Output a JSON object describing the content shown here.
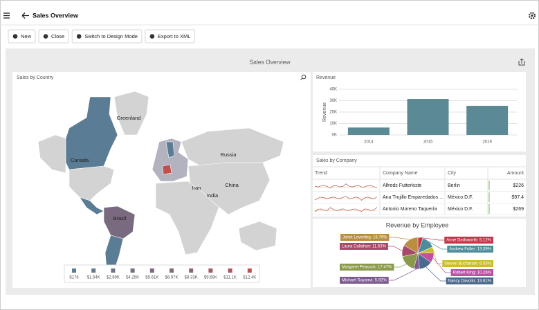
{
  "header": {
    "title": "Sales Overview"
  },
  "toolbar": {
    "buttons": [
      "New",
      "Close",
      "Switch to Design Mode",
      "Export to XML"
    ]
  },
  "dashboard": {
    "title": "Sales Overview",
    "map": {
      "title": "Sales by Country",
      "labels": [
        "Greenland",
        "Russia",
        "Canada",
        "Iran",
        "China",
        "India",
        "Brazil"
      ],
      "legend": [
        {
          "value": 176,
          "label": "$176"
        },
        {
          "value": 1540,
          "label": "$1.54K"
        },
        {
          "value": 2890,
          "label": "$2.89K"
        },
        {
          "value": 4250,
          "label": "$4.25K"
        },
        {
          "value": 5610,
          "label": "$5.61K"
        },
        {
          "value": 6970,
          "label": "$6.97K"
        },
        {
          "value": 8330,
          "label": "$8.33K"
        },
        {
          "value": 9690,
          "label": "$9.69K"
        },
        {
          "value": 11100,
          "label": "$11.1K"
        },
        {
          "value": 12400,
          "label": "$12.4K"
        }
      ],
      "legend_colors": [
        "#5b7c95",
        "#63788f",
        "#6b7489",
        "#737083",
        "#7b6c7d",
        "#866877",
        "#926271",
        "#a05b66",
        "#b0555a",
        "#c0504d"
      ]
    },
    "company_table": {
      "title": "Sales by Company",
      "columns": [
        "Trend",
        "Company Name",
        "City",
        "Amount"
      ],
      "rows": [
        [
          "Alfreds Futterkiste",
          "Berlin",
          "$226"
        ],
        [
          "Ana Trujillo Emparedados ...",
          "México D.F.",
          "$97.4"
        ],
        [
          "Antonio Moreno Taquería",
          "México D.F.",
          "$269"
        ]
      ]
    }
  },
  "chart_data": [
    {
      "type": "bar",
      "title": "Revenue",
      "y_label": "Revenue",
      "categories": [
        "2014",
        "2015",
        "2016"
      ],
      "values": [
        6500,
        31500,
        25500
      ],
      "color": "#5b8a94",
      "ylim": [
        0,
        40000
      ],
      "yticks": [
        {
          "value": 0,
          "label": "0K"
        },
        {
          "value": 10000,
          "label": "10K"
        },
        {
          "value": 20000,
          "label": "20K"
        },
        {
          "value": 30000,
          "label": "30K"
        },
        {
          "value": 40000,
          "label": "40K"
        }
      ],
      "grid": true
    },
    {
      "type": "pie",
      "title": "Revenue by Employee",
      "values": [
        5.12,
        13.39,
        6.03,
        10.26,
        13.61,
        5.82,
        17.47,
        11.53,
        16.76
      ],
      "value_labels": [
        "Anne Dodsworth: 5.12%",
        "Andrew Fuller: 13.39%",
        "Steven Buchanan: 6.03%",
        "Robert King: 10.26%",
        "Nancy Davolio: 13.61%",
        "Michael Suyama: 5.82%",
        "Margaret Peacock: 17.47%",
        "Laura Callahan: 11.53%",
        "Janet Leverling: 16.76%"
      ],
      "colors": [
        "#c0394a",
        "#4d8c9a",
        "#c8c02a",
        "#c050a0",
        "#4c6a8d",
        "#7d5a8f",
        "#8a9a4a",
        "#a74a6a",
        "#b98f3f"
      ]
    }
  ]
}
